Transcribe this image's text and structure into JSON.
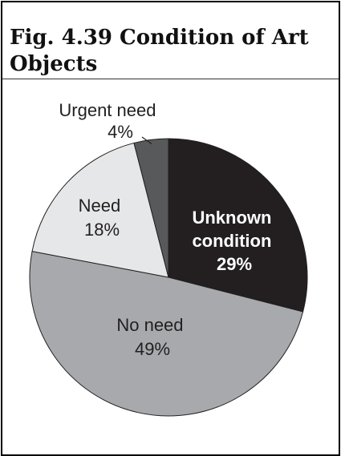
{
  "figure": {
    "title_line1": "Fig. 4.39 Condition of Art",
    "title_line2": "Objects"
  },
  "chart_data": {
    "type": "pie",
    "title": "Fig. 4.39 Condition of Art Objects",
    "slices": [
      {
        "label_lines": [
          "Unknown",
          "condition"
        ],
        "value_text": "29%",
        "value": 29,
        "color": "#231f20",
        "text_color": "#ffffff",
        "bold": true
      },
      {
        "label_lines": [
          "No need"
        ],
        "value_text": "49%",
        "value": 49,
        "color": "#a7a9ac",
        "text_color": "#231f20",
        "bold": false
      },
      {
        "label_lines": [
          "Need"
        ],
        "value_text": "18%",
        "value": 18,
        "color": "#e6e7e8",
        "text_color": "#231f20",
        "bold": false
      },
      {
        "label_lines": [
          "Urgent need"
        ],
        "value_text": "4%",
        "value": 4,
        "color": "#58595b",
        "text_color": "#231f20",
        "bold": false
      }
    ]
  }
}
